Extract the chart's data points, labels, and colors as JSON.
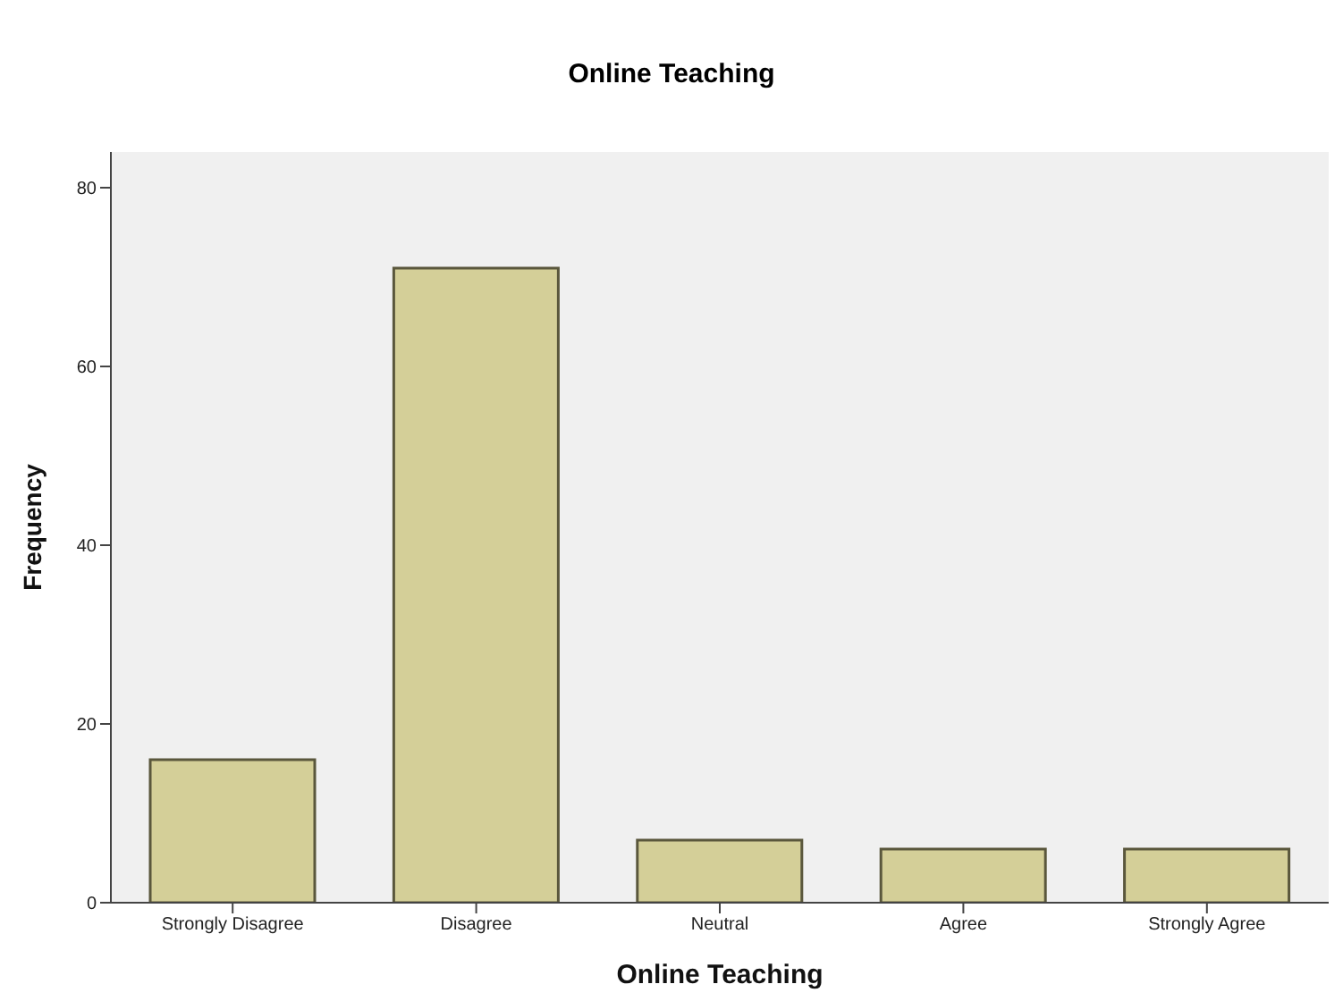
{
  "chart_data": {
    "type": "bar",
    "title": "Online Teaching",
    "xlabel": "Online Teaching",
    "ylabel": "Frequency",
    "categories": [
      "Strongly Disagree",
      "Disagree",
      "Neutral",
      "Agree",
      "Strongly Agree"
    ],
    "values": [
      16,
      71,
      7,
      6,
      6
    ],
    "color": "#d4cf98",
    "ylim": [
      0,
      84
    ],
    "yticks": [
      0,
      20,
      40,
      60,
      80
    ],
    "grid": false
  }
}
